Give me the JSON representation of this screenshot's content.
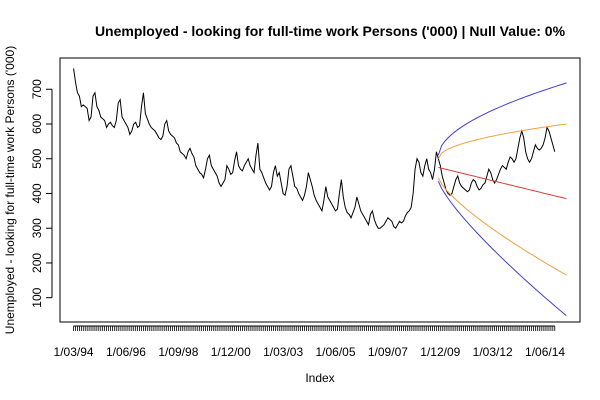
{
  "chart_data": {
    "type": "line",
    "title": "Unemployed - looking for full-time work Persons ('000) | Null Value: 0%",
    "xlabel": "Index",
    "ylabel": "Unemployed - looking for full-time work Persons ('000)",
    "ylim": [
      30,
      790
    ],
    "y_ticks": [
      100,
      200,
      300,
      400,
      500,
      600,
      700
    ],
    "x_ticks": [
      {
        "label": "1/03/94",
        "index": 1
      },
      {
        "label": "1/06/96",
        "index": 28
      },
      {
        "label": "1/09/98",
        "index": 55
      },
      {
        "label": "1/12/00",
        "index": 82
      },
      {
        "label": "1/03/03",
        "index": 109
      },
      {
        "label": "1/06/05",
        "index": 136
      },
      {
        "label": "1/09/07",
        "index": 163
      },
      {
        "label": "1/12/09",
        "index": 190
      },
      {
        "label": "1/03/12",
        "index": 217
      },
      {
        "label": "1/06/14",
        "index": 244
      }
    ],
    "xlim": [
      -6,
      262
    ],
    "grid": false,
    "series": [
      {
        "color": "#000000",
        "start_index": 1,
        "values": [
          760,
          720,
          690,
          680,
          650,
          655,
          650,
          645,
          610,
          620,
          680,
          690,
          650,
          640,
          620,
          615,
          610,
          590,
          600,
          605,
          595,
          590,
          610,
          660,
          670,
          620,
          610,
          600,
          590,
          570,
          580,
          600,
          605,
          590,
          595,
          650,
          690,
          630,
          615,
          600,
          590,
          585,
          580,
          570,
          560,
          555,
          565,
          600,
          610,
          580,
          570,
          565,
          560,
          545,
          540,
          520,
          515,
          510,
          500,
          520,
          530,
          515,
          505,
          480,
          470,
          460,
          455,
          445,
          470,
          500,
          510,
          480,
          470,
          460,
          450,
          430,
          420,
          430,
          440,
          480,
          470,
          455,
          460,
          495,
          520,
          480,
          470,
          465,
          480,
          490,
          500,
          480,
          470,
          460,
          510,
          545,
          470,
          460,
          445,
          430,
          420,
          410,
          420,
          460,
          480,
          450,
          460,
          430,
          400,
          395,
          420,
          470,
          480,
          450,
          420,
          415,
          400,
          390,
          380,
          395,
          420,
          460,
          440,
          420,
          395,
          380,
          370,
          360,
          350,
          380,
          420,
          390,
          380,
          370,
          360,
          350,
          355,
          400,
          440,
          390,
          360,
          345,
          340,
          330,
          345,
          360,
          390,
          370,
          350,
          340,
          330,
          320,
          310,
          340,
          350,
          325,
          310,
          300,
          300,
          305,
          310,
          320,
          330,
          325,
          320,
          305,
          300,
          310,
          320,
          315,
          320,
          335,
          345,
          350,
          360,
          400,
          470,
          500,
          490,
          460,
          450,
          480,
          500,
          470,
          460,
          440,
          470,
          520,
          500,
          480,
          450,
          430,
          410,
          400,
          395,
          400,
          420,
          440,
          450,
          430,
          420,
          415,
          410,
          405,
          410,
          430,
          440,
          435,
          420,
          410,
          415,
          425,
          430,
          450,
          470,
          460,
          440,
          430,
          440,
          455,
          470,
          480,
          475,
          470,
          490,
          505,
          500,
          490,
          500,
          530,
          560,
          580,
          560,
          520,
          500,
          490,
          500,
          520,
          540,
          530,
          525,
          530,
          540,
          560,
          590,
          580,
          560,
          540,
          520
        ]
      }
    ],
    "forecast": {
      "start_index": 250,
      "end_index": 255,
      "join_index": 189,
      "join_value": 475,
      "mean": {
        "color": "#e03a3a",
        "start": 475,
        "end": 385
      },
      "inner_band": {
        "color": "#f0a040",
        "upper_start": 500,
        "upper_end": 600,
        "lower_start": 445,
        "lower_end": 165
      },
      "outer_band": {
        "color": "#4040d0",
        "upper_start": 510,
        "upper_end": 718,
        "lower_start": 435,
        "lower_end": 48
      }
    }
  }
}
